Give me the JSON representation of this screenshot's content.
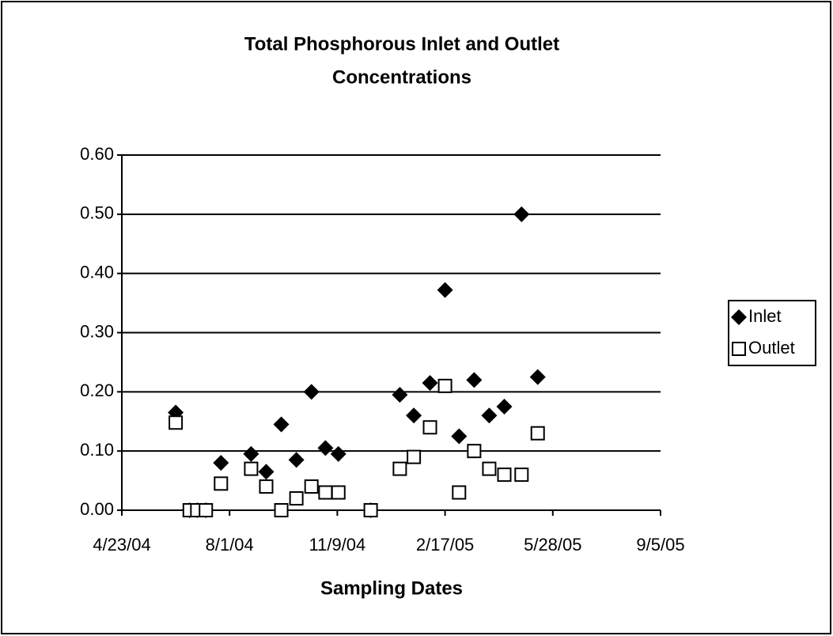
{
  "chart_data": {
    "type": "scatter",
    "title": [
      "Total Phosphorous Inlet and Outlet",
      "Concentrations"
    ],
    "x_label": "Sampling Dates",
    "x": [
      "2004-06-12",
      "2004-06-25",
      "2004-07-02",
      "2004-07-10",
      "2004-07-24",
      "2004-08-21",
      "2004-09-04",
      "2004-09-18",
      "2004-10-02",
      "2004-10-16",
      "2004-10-29",
      "2004-11-10",
      "2004-12-10",
      "2005-01-06",
      "2005-01-19",
      "2005-02-03",
      "2005-02-17",
      "2005-03-02",
      "2005-03-16",
      "2005-03-30",
      "2005-04-13",
      "2005-04-29",
      "2005-05-14"
    ],
    "series": [
      {
        "name": "Inlet",
        "color": "#000000",
        "marker": "diamond",
        "values": [
          0.165,
          0,
          0,
          0,
          0.08,
          0.095,
          0.065,
          0.145,
          0.085,
          0.2,
          0.105,
          0.095,
          0,
          0.195,
          0.16,
          0.215,
          0.372,
          0.125,
          0.22,
          0.16,
          0.175,
          0.5,
          0.225
        ]
      },
      {
        "name": "Outlet",
        "color": "#000000",
        "marker": "square",
        "values": [
          0.148,
          0,
          0,
          0,
          0.045,
          0.07,
          0.04,
          0,
          0.02,
          0.04,
          0.03,
          0.03,
          0,
          0.07,
          0.09,
          0.14,
          0.21,
          0.03,
          0.1,
          0.07,
          0.06,
          0.06,
          0.13
        ]
      }
    ],
    "xlim": [
      "2004-04-23",
      "2005-09-05"
    ],
    "xticks": [
      {
        "value": "2004-04-23",
        "label": "4/23/04"
      },
      {
        "value": "2004-08-01",
        "label": "8/1/04"
      },
      {
        "value": "2004-11-09",
        "label": "11/9/04"
      },
      {
        "value": "2005-02-17",
        "label": "2/17/05"
      },
      {
        "value": "2005-05-28",
        "label": "5/28/05"
      },
      {
        "value": "2005-09-05",
        "label": "9/5/05"
      }
    ],
    "ylim": [
      0,
      0.6
    ],
    "yticks": [
      {
        "value": 0,
        "label": "0.00"
      },
      {
        "value": 0.1,
        "label": "0.10"
      },
      {
        "value": 0.2,
        "label": "0.20"
      },
      {
        "value": 0.3,
        "label": "0.30"
      },
      {
        "value": 0.4,
        "label": "0.40"
      },
      {
        "value": 0.5,
        "label": "0.50"
      },
      {
        "value": 0.6,
        "label": "0.60"
      }
    ],
    "grid": true,
    "legend": "right"
  }
}
